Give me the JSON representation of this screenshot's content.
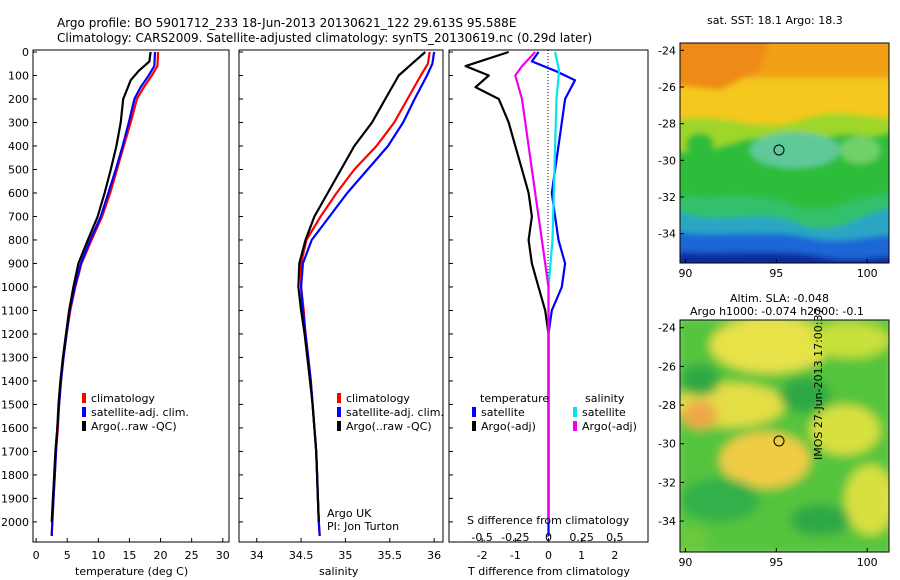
{
  "header": {
    "line1": "Argo profile: BO 5901712_233 18-Jun-2013 20130621_122 29.613S 95.588E",
    "line2": "Climatology: CARS2009. Satellite-adjusted climatology: synTS_20130619.nc (0.29d later)"
  },
  "side_stamp": "IMOS 27-Jun-2013 17:00:37",
  "colors": {
    "climatology": "#ff0000",
    "satellite": "#0000ff",
    "argo": "#000000",
    "sal_satellite": "#00e5ee",
    "sal_argo": "#ee00ee"
  },
  "chart_data": [
    {
      "type": "line",
      "panel": "temperature",
      "xlabel": "temperature (deg C)",
      "ylim": [
        2080,
        0
      ],
      "xlim": [
        -0.5,
        31
      ],
      "xticks": [
        0,
        5,
        10,
        15,
        20,
        25,
        30
      ],
      "yticks": [
        0,
        100,
        200,
        300,
        400,
        500,
        600,
        700,
        800,
        900,
        1000,
        1100,
        1200,
        1300,
        1400,
        1500,
        1600,
        1700,
        1800,
        1900,
        2000
      ],
      "legend": [
        "climatology",
        "satellite-adj. clim.",
        "Argo(..raw -QC)"
      ],
      "series": [
        {
          "name": "climatology",
          "color": "#ff0000",
          "points": [
            [
              19.6,
              0
            ],
            [
              19.5,
              60
            ],
            [
              18.6,
              100
            ],
            [
              17.3,
              150
            ],
            [
              16.2,
              200
            ],
            [
              15.2,
              300
            ],
            [
              14.1,
              400
            ],
            [
              13.0,
              500
            ],
            [
              11.9,
              600
            ],
            [
              10.6,
              700
            ],
            [
              8.9,
              800
            ],
            [
              7.3,
              900
            ],
            [
              6.3,
              1000
            ],
            [
              5.5,
              1100
            ],
            [
              4.9,
              1200
            ],
            [
              4.4,
              1300
            ],
            [
              4.0,
              1400
            ],
            [
              3.7,
              1500
            ],
            [
              3.5,
              1600
            ],
            [
              3.2,
              1700
            ],
            [
              3.0,
              1800
            ],
            [
              2.8,
              1900
            ],
            [
              2.6,
              2000
            ],
            [
              2.5,
              2060
            ]
          ]
        },
        {
          "name": "satellite-adj. clim.",
          "color": "#0000ff",
          "points": [
            [
              19.1,
              0
            ],
            [
              19.0,
              60
            ],
            [
              18.1,
              100
            ],
            [
              16.8,
              150
            ],
            [
              15.8,
              200
            ],
            [
              14.9,
              300
            ],
            [
              13.9,
              400
            ],
            [
              12.8,
              500
            ],
            [
              11.6,
              600
            ],
            [
              10.4,
              700
            ],
            [
              8.7,
              800
            ],
            [
              7.2,
              900
            ],
            [
              6.2,
              1000
            ],
            [
              5.4,
              1100
            ],
            [
              4.9,
              1200
            ],
            [
              4.4,
              1300
            ],
            [
              4.0,
              1400
            ],
            [
              3.7,
              1500
            ],
            [
              3.4,
              1600
            ],
            [
              3.2,
              1700
            ],
            [
              3.0,
              1800
            ],
            [
              2.8,
              1900
            ],
            [
              2.6,
              2000
            ],
            [
              2.5,
              2060
            ]
          ]
        },
        {
          "name": "Argo(..raw -QC)",
          "color": "#000000",
          "points": [
            [
              18.4,
              0
            ],
            [
              18.2,
              40
            ],
            [
              16.5,
              80
            ],
            [
              15.2,
              120
            ],
            [
              14.6,
              160
            ],
            [
              14.0,
              200
            ],
            [
              13.6,
              300
            ],
            [
              12.9,
              400
            ],
            [
              12.0,
              500
            ],
            [
              11.0,
              600
            ],
            [
              9.9,
              700
            ],
            [
              8.3,
              800
            ],
            [
              6.8,
              900
            ],
            [
              6.0,
              1000
            ],
            [
              5.3,
              1100
            ],
            [
              4.8,
              1200
            ],
            [
              4.3,
              1300
            ],
            [
              3.9,
              1400
            ],
            [
              3.6,
              1500
            ],
            [
              3.4,
              1600
            ],
            [
              3.1,
              1700
            ],
            [
              2.9,
              1800
            ],
            [
              2.7,
              1900
            ],
            [
              2.5,
              2000
            ]
          ]
        }
      ]
    },
    {
      "type": "line",
      "panel": "salinity",
      "xlabel": "salinity",
      "ylim": [
        2080,
        0
      ],
      "xlim": [
        33.8,
        36.1
      ],
      "xticks": [
        34,
        34.5,
        35,
        35.5,
        36
      ],
      "xticklabels": [
        "34",
        "34.5",
        "35",
        "35.5",
        "36"
      ],
      "legend": [
        "climatology",
        "satellite-adj. clim.",
        "Argo(..raw -QC)"
      ],
      "annotation": [
        "Argo UK",
        "PI: Jon Turton"
      ],
      "series": [
        {
          "name": "climatology",
          "color": "#ff0000",
          "points": [
            [
              35.95,
              0
            ],
            [
              35.93,
              50
            ],
            [
              35.85,
              100
            ],
            [
              35.7,
              200
            ],
            [
              35.55,
              300
            ],
            [
              35.35,
              400
            ],
            [
              35.1,
              500
            ],
            [
              34.9,
              600
            ],
            [
              34.72,
              700
            ],
            [
              34.56,
              800
            ],
            [
              34.5,
              900
            ],
            [
              34.5,
              1000
            ],
            [
              34.53,
              1100
            ],
            [
              34.55,
              1200
            ],
            [
              34.58,
              1300
            ],
            [
              34.61,
              1400
            ],
            [
              34.63,
              1500
            ],
            [
              34.65,
              1600
            ],
            [
              34.67,
              1700
            ],
            [
              34.68,
              1800
            ],
            [
              34.69,
              1900
            ],
            [
              34.7,
              2000
            ],
            [
              34.71,
              2060
            ]
          ]
        },
        {
          "name": "satellite-adj. clim.",
          "color": "#0000ff",
          "points": [
            [
              36.0,
              0
            ],
            [
              35.98,
              50
            ],
            [
              35.92,
              100
            ],
            [
              35.78,
              200
            ],
            [
              35.65,
              300
            ],
            [
              35.48,
              400
            ],
            [
              35.25,
              500
            ],
            [
              35.02,
              600
            ],
            [
              34.82,
              700
            ],
            [
              34.62,
              800
            ],
            [
              34.52,
              900
            ],
            [
              34.5,
              1000
            ],
            [
              34.52,
              1100
            ],
            [
              34.55,
              1200
            ],
            [
              34.58,
              1300
            ],
            [
              34.61,
              1400
            ],
            [
              34.63,
              1500
            ],
            [
              34.65,
              1600
            ],
            [
              34.67,
              1700
            ],
            [
              34.68,
              1800
            ],
            [
              34.69,
              1900
            ],
            [
              34.7,
              2000
            ],
            [
              34.71,
              2060
            ]
          ]
        },
        {
          "name": "Argo(..raw -QC)",
          "color": "#000000",
          "points": [
            [
              35.9,
              0
            ],
            [
              35.75,
              50
            ],
            [
              35.6,
              100
            ],
            [
              35.45,
              200
            ],
            [
              35.3,
              300
            ],
            [
              35.1,
              400
            ],
            [
              34.95,
              500
            ],
            [
              34.8,
              600
            ],
            [
              34.65,
              700
            ],
            [
              34.55,
              800
            ],
            [
              34.48,
              900
            ],
            [
              34.47,
              1000
            ],
            [
              34.5,
              1100
            ],
            [
              34.54,
              1200
            ],
            [
              34.57,
              1300
            ],
            [
              34.6,
              1400
            ],
            [
              34.63,
              1500
            ],
            [
              34.65,
              1600
            ],
            [
              34.67,
              1700
            ],
            [
              34.68,
              1800
            ],
            [
              34.69,
              1900
            ],
            [
              34.7,
              2000
            ]
          ]
        }
      ]
    },
    {
      "type": "line",
      "panel": "difference",
      "xlabel": "T difference from climatology",
      "top_label": "S difference from climatology",
      "ylim": [
        2080,
        0
      ],
      "xlim": [
        -3,
        3
      ],
      "xticks": [
        -2,
        -1,
        0,
        1,
        2
      ],
      "top_xticks": [
        -0.5,
        -0.25,
        0,
        0.25,
        0.5
      ],
      "top_xlim": [
        -0.75,
        0.75
      ],
      "legend_groups": [
        {
          "title": "temperature",
          "items": [
            "satellite",
            "Argo(-adj)"
          ]
        },
        {
          "title": "salinity",
          "items": [
            "satellite",
            "Argo(-adj)"
          ]
        }
      ],
      "series": [
        {
          "name": "temperature satellite",
          "color": "#0000ff",
          "unit": "T",
          "points": [
            [
              -0.3,
              0
            ],
            [
              -0.5,
              40
            ],
            [
              0.2,
              80
            ],
            [
              0.8,
              120
            ],
            [
              0.5,
              200
            ],
            [
              0.4,
              300
            ],
            [
              0.3,
              400
            ],
            [
              0.2,
              500
            ],
            [
              0.1,
              600
            ],
            [
              0.2,
              700
            ],
            [
              0.3,
              800
            ],
            [
              0.5,
              900
            ],
            [
              0.4,
              1000
            ],
            [
              0.1,
              1100
            ],
            [
              0.0,
              1200
            ],
            [
              0.0,
              1500
            ],
            [
              0.0,
              2000
            ],
            [
              0.0,
              2060
            ]
          ]
        },
        {
          "name": "temperature Argo(-adj)",
          "color": "#000000",
          "unit": "T",
          "points": [
            [
              -1.2,
              0
            ],
            [
              -2.5,
              60
            ],
            [
              -1.8,
              100
            ],
            [
              -2.2,
              150
            ],
            [
              -1.5,
              200
            ],
            [
              -1.2,
              300
            ],
            [
              -1.0,
              400
            ],
            [
              -0.8,
              500
            ],
            [
              -0.6,
              600
            ],
            [
              -0.5,
              700
            ],
            [
              -0.6,
              800
            ],
            [
              -0.5,
              900
            ],
            [
              -0.3,
              1000
            ],
            [
              -0.1,
              1100
            ],
            [
              0.0,
              1200
            ],
            [
              0.0,
              1500
            ],
            [
              0.0,
              2000
            ]
          ]
        },
        {
          "name": "salinity satellite",
          "color": "#00e5ee",
          "unit": "S",
          "points": [
            [
              0.05,
              0
            ],
            [
              0.08,
              80
            ],
            [
              0.06,
              200
            ],
            [
              0.05,
              400
            ],
            [
              0.04,
              600
            ],
            [
              0.03,
              800
            ],
            [
              0.0,
              1000
            ],
            [
              0.0,
              2000
            ]
          ]
        },
        {
          "name": "salinity Argo(-adj)",
          "color": "#ee00ee",
          "unit": "S",
          "points": [
            [
              -0.1,
              0
            ],
            [
              -0.2,
              60
            ],
            [
              -0.25,
              100
            ],
            [
              -0.2,
              200
            ],
            [
              -0.15,
              400
            ],
            [
              -0.1,
              600
            ],
            [
              -0.05,
              800
            ],
            [
              0.0,
              1000
            ],
            [
              0.0,
              2000
            ]
          ]
        }
      ]
    },
    {
      "type": "heatmap",
      "panel": "sst",
      "title": "sat. SST: 18.1  Argo: 18.3",
      "xticks": [
        90,
        95,
        100
      ],
      "yticks": [
        -24,
        -26,
        -28,
        -30,
        -32,
        -34
      ],
      "marker": {
        "lon": 95.6,
        "lat": -29.6
      }
    },
    {
      "type": "heatmap",
      "panel": "sla",
      "title_lines": [
        "Altim. SLA: -0.048",
        "Argo h1000: -0.074  h2000: -0.1"
      ],
      "xticks": [
        90,
        95,
        100
      ],
      "yticks": [
        -24,
        -26,
        -28,
        -30,
        -32,
        -34
      ],
      "marker": {
        "lon": 95.6,
        "lat": -29.6
      }
    }
  ]
}
